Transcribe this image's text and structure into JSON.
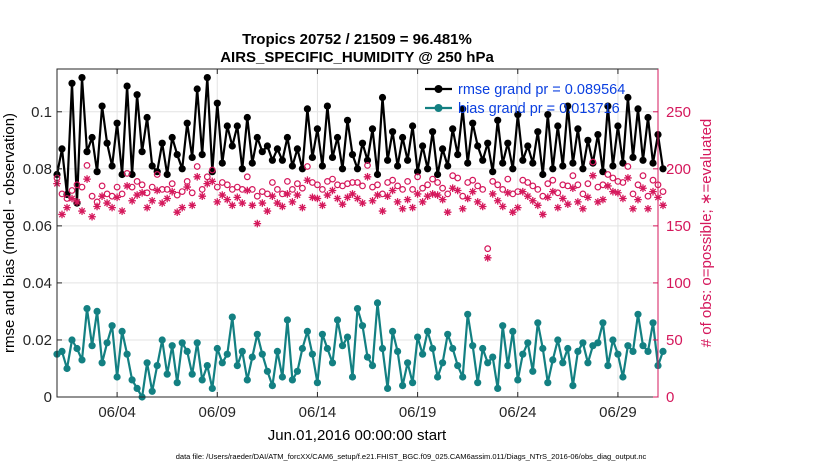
{
  "chart_data": {
    "type": "line",
    "title": "Tropics 20752 / 21509 = 96.481%",
    "subtitle": "AIRS_SPECIFIC_HUMIDITY @ 250 hPa",
    "xlabel": "Jun.01,2016 00:00:00 start",
    "ylabel": "rmse and bias (model - observation)",
    "ylabel_right": "# of obs: o=possible; ∗=evaluated",
    "footnote": "data file: /Users/raeder/DAI/ATM_forcXX/CAM6_setup/f.e21.FHIST_BGC.f09_025.CAM6assim.011/Diags_NTrS_2016-06/obs_diag_output.nc",
    "x_tick_labels": [
      "06/04",
      "06/09",
      "06/14",
      "06/19",
      "06/24",
      "06/29"
    ],
    "x_tick_positions": [
      4,
      9,
      14,
      19,
      24,
      29
    ],
    "xlim": [
      1,
      31
    ],
    "ylim": [
      0,
      0.115
    ],
    "y_ticks": [
      0,
      0.02,
      0.04,
      0.06,
      0.08,
      0.1
    ],
    "y_tick_labels": [
      "0",
      "0.02",
      "0.04",
      "0.06",
      "0.08",
      "0.1"
    ],
    "ylim_right": [
      0,
      287.5
    ],
    "y2_ticks": [
      0,
      50,
      100,
      150,
      200,
      250
    ],
    "y2_tick_labels": [
      "0",
      "50",
      "100",
      "150",
      "200",
      "250"
    ],
    "colors": {
      "rmse": "#000000",
      "bias": "#138082",
      "obs": "#d5185c",
      "legend_text": "#0a3fe0",
      "grid": "#e3e3e3"
    },
    "series": [
      {
        "name": "rmse grand pr = 0.089564",
        "axis": "left",
        "x_start": 1.0,
        "x_step": 0.25,
        "values": [
          0.078,
          0.087,
          0.071,
          0.11,
          0.068,
          0.112,
          0.086,
          0.091,
          0.079,
          0.102,
          0.089,
          0.081,
          0.096,
          0.078,
          0.109,
          0.078,
          0.106,
          0.086,
          0.098,
          0.081,
          0.079,
          0.089,
          0.078,
          0.091,
          0.085,
          0.08,
          0.096,
          0.084,
          0.108,
          0.085,
          0.112,
          0.079,
          0.103,
          0.082,
          0.095,
          0.088,
          0.095,
          0.08,
          0.098,
          0.082,
          0.091,
          0.086,
          0.088,
          0.083,
          0.087,
          0.083,
          0.091,
          0.081,
          0.087,
          0.08,
          0.101,
          0.084,
          0.094,
          0.081,
          0.102,
          0.084,
          0.091,
          0.08,
          0.097,
          0.085,
          0.08,
          0.089,
          0.083,
          0.094,
          0.078,
          0.105,
          0.083,
          0.093,
          0.081,
          0.091,
          0.083,
          0.095,
          0.079,
          0.088,
          0.08,
          0.093,
          0.078,
          0.087,
          0.081,
          0.094,
          0.085,
          0.101,
          0.082,
          0.096,
          0.088,
          0.083,
          0.089,
          0.079,
          0.097,
          0.082,
          0.089,
          0.08,
          0.099,
          0.083,
          0.088,
          0.082,
          0.093,
          0.078,
          0.099,
          0.08,
          0.095,
          0.081,
          0.102,
          0.082,
          0.094,
          0.08,
          0.09,
          0.082,
          0.092,
          0.079,
          0.102,
          0.081,
          0.095,
          0.082,
          0.105,
          0.084,
          0.101,
          0.083,
          0.098,
          0.082,
          0.092,
          0.08
        ],
        "marker": "filled-circle"
      },
      {
        "name": "bias grand pr = 0.013716",
        "axis": "left",
        "x_start": 1.0,
        "x_step": 0.25,
        "values": [
          0.015,
          0.016,
          0.01,
          0.02,
          0.017,
          0.013,
          0.031,
          0.018,
          0.03,
          0.012,
          0.019,
          0.025,
          0.007,
          0.023,
          0.015,
          0.006,
          0.003,
          0.0,
          0.012,
          0.002,
          0.011,
          0.02,
          0.008,
          0.018,
          0.005,
          0.019,
          0.016,
          0.008,
          0.019,
          0.006,
          0.011,
          0.003,
          0.017,
          0.012,
          0.015,
          0.028,
          0.011,
          0.016,
          0.006,
          0.014,
          0.022,
          0.015,
          0.009,
          0.004,
          0.016,
          0.007,
          0.027,
          0.006,
          0.009,
          0.017,
          0.023,
          0.015,
          0.005,
          0.022,
          0.017,
          0.012,
          0.027,
          0.018,
          0.021,
          0.007,
          0.031,
          0.025,
          0.014,
          0.011,
          0.033,
          0.017,
          0.003,
          0.023,
          0.016,
          0.004,
          0.012,
          0.005,
          0.021,
          0.015,
          0.023,
          0.017,
          0.007,
          0.012,
          0.022,
          0.017,
          0.011,
          0.007,
          0.029,
          0.018,
          0.005,
          0.017,
          0.012,
          0.014,
          0.003,
          0.025,
          0.011,
          0.023,
          0.006,
          0.015,
          0.019,
          0.009,
          0.026,
          0.017,
          0.005,
          0.013,
          0.02,
          0.012,
          0.017,
          0.004,
          0.016,
          0.019,
          0.012,
          0.018,
          0.019,
          0.026,
          0.011,
          0.02,
          0.015,
          0.007,
          0.018,
          0.016,
          0.029,
          0.018,
          0.016,
          0.026,
          0.011,
          0.016
        ],
        "marker": "filled-circle"
      },
      {
        "name": "observations possible",
        "axis": "right",
        "x_start": 1.0,
        "x_step": 0.25,
        "values": [
          192,
          178,
          174,
          181,
          186,
          184,
          203,
          176,
          171,
          185,
          178,
          176,
          184,
          178,
          196,
          184,
          189,
          186,
          179,
          184,
          195,
          182,
          182,
          187,
          177,
          180,
          189,
          179,
          202,
          182,
          193,
          199,
          184,
          188,
          186,
          182,
          184,
          182,
          193,
          182,
          176,
          180,
          178,
          188,
          182,
          178,
          189,
          182,
          187,
          183,
          202,
          188,
          186,
          182,
          189,
          191,
          186,
          185,
          187,
          188,
          188,
          185,
          203,
          184,
          186,
          178,
          188,
          190,
          185,
          182,
          189,
          182,
          193,
          183,
          186,
          191,
          188,
          183,
          178,
          194,
          192,
          176,
          188,
          190,
          185,
          182,
          130,
          189,
          186,
          182,
          191,
          178,
          180,
          190,
          188,
          185,
          182,
          176,
          187,
          190,
          179,
          186,
          185,
          194,
          186,
          178,
          187,
          206,
          184,
          186,
          195,
          192,
          189,
          188,
          202,
          178,
          186,
          194,
          176,
          190,
          186,
          180
        ],
        "marker": "open-circle"
      },
      {
        "name": "observations evaluated",
        "axis": "right",
        "x_start": 1.0,
        "x_step": 0.25,
        "values": [
          187,
          160,
          166,
          174,
          171,
          163,
          191,
          158,
          167,
          176,
          170,
          166,
          175,
          163,
          185,
          172,
          177,
          179,
          166,
          172,
          181,
          170,
          174,
          180,
          162,
          166,
          184,
          168,
          193,
          176,
          187,
          189,
          171,
          177,
          173,
          168,
          175,
          170,
          181,
          168,
          152,
          170,
          163,
          176,
          170,
          167,
          178,
          171,
          177,
          166,
          190,
          175,
          174,
          168,
          177,
          181,
          174,
          169,
          175,
          178,
          174,
          170,
          193,
          172,
          177,
          163,
          176,
          181,
          171,
          165,
          173,
          166,
          178,
          171,
          176,
          178,
          177,
          173,
          162,
          183,
          181,
          165,
          174,
          180,
          171,
          167,
          122,
          178,
          172,
          167,
          179,
          162,
          166,
          180,
          176,
          172,
          168,
          160,
          175,
          180,
          166,
          174,
          169,
          183,
          171,
          165,
          175,
          194,
          171,
          173,
          185,
          180,
          179,
          174,
          192,
          165,
          173,
          183,
          165,
          180,
          175,
          168
        ],
        "marker": "asterisk"
      }
    ],
    "legend_position": "top-right"
  }
}
